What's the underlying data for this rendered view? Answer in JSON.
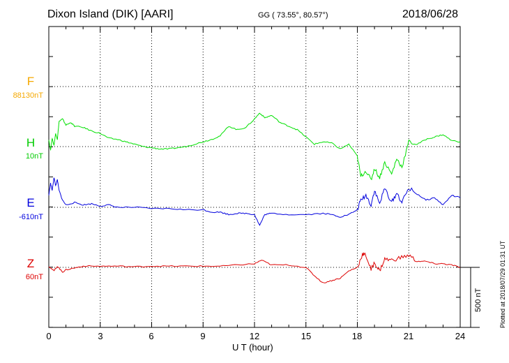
{
  "header": {
    "station": "Dixon Island (DIK)  [AARI]",
    "coords": "GG ( 73.55°,  80.57°)",
    "date": "2018/06/28"
  },
  "footer": {
    "plotted": "Plotted at 2018/07/29 01:31  UT"
  },
  "colors": {
    "F": "#f5a800",
    "H": "#00e000",
    "E": "#0000dd",
    "Z": "#dd0000"
  },
  "chart_data": {
    "type": "line",
    "xlabel": "U T (hour)",
    "xlim": [
      0,
      24
    ],
    "xticks": [
      0,
      3,
      6,
      9,
      12,
      15,
      18,
      21,
      24
    ],
    "scale_bar": {
      "label": "500 nT",
      "value_nT": 500
    },
    "series": [
      {
        "name": "F",
        "baseline_label": "88130nT",
        "color": "#f5a800",
        "x": [],
        "y": []
      },
      {
        "name": "H",
        "baseline_label": "10nT",
        "color": "#00e000",
        "x": [
          0,
          0.1,
          0.2,
          0.3,
          0.4,
          0.5,
          0.6,
          0.8,
          1,
          1.3,
          1.5,
          2,
          2.5,
          3,
          3.5,
          4,
          4.5,
          5,
          5.5,
          6,
          6.5,
          7,
          7.5,
          8,
          8.5,
          9,
          9.5,
          10,
          10.5,
          11,
          11.5,
          12,
          12.3,
          12.6,
          13,
          13.5,
          14,
          14.5,
          15,
          15.5,
          16,
          16.5,
          17,
          17.5,
          18,
          18.2,
          18.5,
          18.8,
          19,
          19.3,
          19.6,
          20,
          20.3,
          20.6,
          21,
          21.5,
          22,
          22.5,
          23,
          23.5,
          24
        ],
        "y": [
          60,
          -30,
          70,
          10,
          110,
          60,
          210,
          230,
          180,
          200,
          170,
          160,
          130,
          110,
          70,
          60,
          40,
          20,
          0,
          -10,
          -20,
          -20,
          -10,
          0,
          20,
          40,
          60,
          90,
          170,
          140,
          160,
          230,
          280,
          240,
          260,
          200,
          170,
          140,
          80,
          20,
          40,
          30,
          -20,
          20,
          -80,
          -250,
          -200,
          -280,
          -180,
          -260,
          -130,
          -230,
          -100,
          -170,
          40,
          20,
          60,
          80,
          100,
          50,
          40
        ]
      },
      {
        "name": "E",
        "baseline_label": "-610nT",
        "color": "#0000dd",
        "x": [
          0,
          0.1,
          0.2,
          0.3,
          0.4,
          0.5,
          0.6,
          0.8,
          1,
          1.5,
          2,
          2.5,
          3,
          3.5,
          4,
          5,
          6,
          7,
          8,
          9,
          9.5,
          10,
          10.5,
          11,
          11.5,
          12,
          12.3,
          12.6,
          13,
          14,
          15,
          16,
          16.5,
          17,
          17.5,
          18,
          18.2,
          18.5,
          18.8,
          19,
          19.3,
          19.6,
          20,
          20.3,
          20.6,
          21,
          21.5,
          22,
          22.5,
          23,
          23.5,
          24
        ],
        "y": [
          100,
          200,
          140,
          250,
          180,
          230,
          140,
          60,
          20,
          40,
          20,
          30,
          10,
          20,
          0,
          0,
          -10,
          -10,
          -20,
          -20,
          -40,
          -40,
          -60,
          -50,
          -50,
          -60,
          -150,
          -60,
          -50,
          -60,
          -60,
          -50,
          -60,
          -80,
          -60,
          -20,
          60,
          100,
          20,
          140,
          30,
          160,
          40,
          120,
          40,
          160,
          110,
          60,
          80,
          20,
          100,
          80
        ]
      },
      {
        "name": "Z",
        "baseline_label": "60nT",
        "color": "#dd0000",
        "x": [
          0,
          0.3,
          0.5,
          0.8,
          1,
          1.5,
          2,
          3,
          4,
          5,
          6,
          7,
          8,
          9,
          10,
          11,
          12,
          12.4,
          13,
          14,
          15,
          15.5,
          16,
          16.5,
          17,
          17.5,
          18,
          18.3,
          18.5,
          18.8,
          19,
          19.3,
          19.6,
          20,
          20.5,
          21,
          21.5,
          22,
          22.5,
          23,
          23.5,
          24
        ],
        "y": [
          10,
          -30,
          10,
          -40,
          -20,
          -5,
          10,
          10,
          10,
          5,
          10,
          10,
          10,
          10,
          10,
          20,
          30,
          60,
          20,
          20,
          0,
          -70,
          -130,
          -110,
          -90,
          -30,
          0,
          110,
          100,
          -20,
          40,
          -30,
          70,
          60,
          80,
          100,
          50,
          50,
          30,
          30,
          20,
          0
        ]
      }
    ]
  }
}
